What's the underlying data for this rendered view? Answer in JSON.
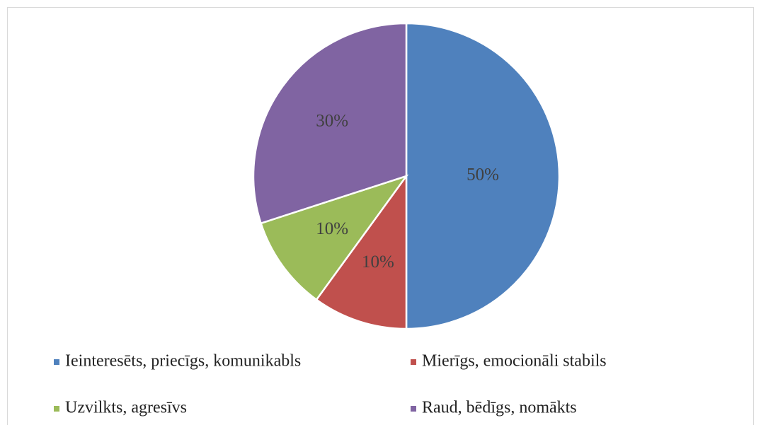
{
  "chart_data": {
    "type": "pie",
    "categories": [
      "Ieinteresēts, priecīgs, komunikabls",
      "Mierīgs, emocionāli stabils",
      "Uzvilkts, agresīvs",
      "Raud, bēdīgs, nomākts"
    ],
    "values": [
      50,
      10,
      10,
      30
    ],
    "value_labels": [
      "50%",
      "10%",
      "10%",
      "30%"
    ],
    "colors": [
      "#4f81bd",
      "#c0504d",
      "#9bbb59",
      "#8064a2"
    ],
    "legend": "bottom"
  }
}
